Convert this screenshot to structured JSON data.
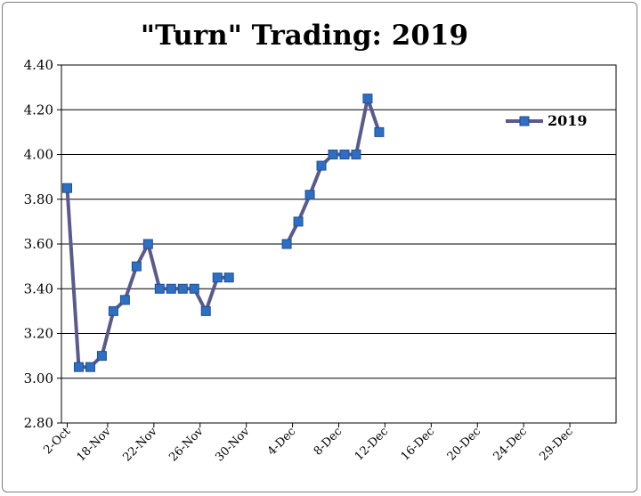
{
  "chart_data": {
    "type": "line",
    "title": "\"Turn\" Trading: 2019",
    "xlabel": "",
    "ylabel": "",
    "ylim": [
      2.8,
      4.4
    ],
    "ytick_labels": [
      "2.80",
      "3.00",
      "3.20",
      "3.40",
      "3.60",
      "3.80",
      "4.00",
      "4.20",
      "4.40"
    ],
    "x_tick_labels": [
      "2-Oct",
      "18-Nov",
      "22-Nov",
      "26-Nov",
      "30-Nov",
      "4-Dec",
      "8-Dec",
      "12-Dec",
      "16-Dec",
      "20-Dec",
      "24-Dec",
      "29-Dec"
    ],
    "grid": "horizontal",
    "legend_position": "right",
    "series": [
      {
        "name": "2019",
        "color": "#5a5a8c",
        "marker_color": "#2e6fc4",
        "points": [
          {
            "x": 0,
            "y": 3.85
          },
          {
            "x": 1,
            "y": 3.05
          },
          {
            "x": 2,
            "y": 3.05
          },
          {
            "x": 3,
            "y": 3.1
          },
          {
            "x": 4,
            "y": 3.3
          },
          {
            "x": 5,
            "y": 3.35
          },
          {
            "x": 6,
            "y": 3.5
          },
          {
            "x": 7,
            "y": 3.6
          },
          {
            "x": 8,
            "y": 3.4
          },
          {
            "x": 9,
            "y": 3.4
          },
          {
            "x": 10,
            "y": 3.4
          },
          {
            "x": 11,
            "y": 3.4
          },
          {
            "x": 12,
            "y": 3.3
          },
          {
            "x": 13,
            "y": 3.45
          },
          {
            "x": 14,
            "y": 3.45
          },
          {
            "x": 19,
            "y": 3.6
          },
          {
            "x": 20,
            "y": 3.7
          },
          {
            "x": 21,
            "y": 3.82
          },
          {
            "x": 22,
            "y": 3.95
          },
          {
            "x": 23,
            "y": 4.0
          },
          {
            "x": 24,
            "y": 4.0
          },
          {
            "x": 25,
            "y": 4.0
          },
          {
            "x": 26,
            "y": 4.25
          },
          {
            "x": 27,
            "y": 4.1
          }
        ]
      }
    ],
    "x_tick_positions": [
      0,
      3.5,
      7.5,
      11.5,
      15.5,
      19.5,
      23.5,
      27.5,
      31.5,
      35.5,
      39.5,
      43.5
    ],
    "xlim": [
      -0.5,
      47.5
    ]
  }
}
